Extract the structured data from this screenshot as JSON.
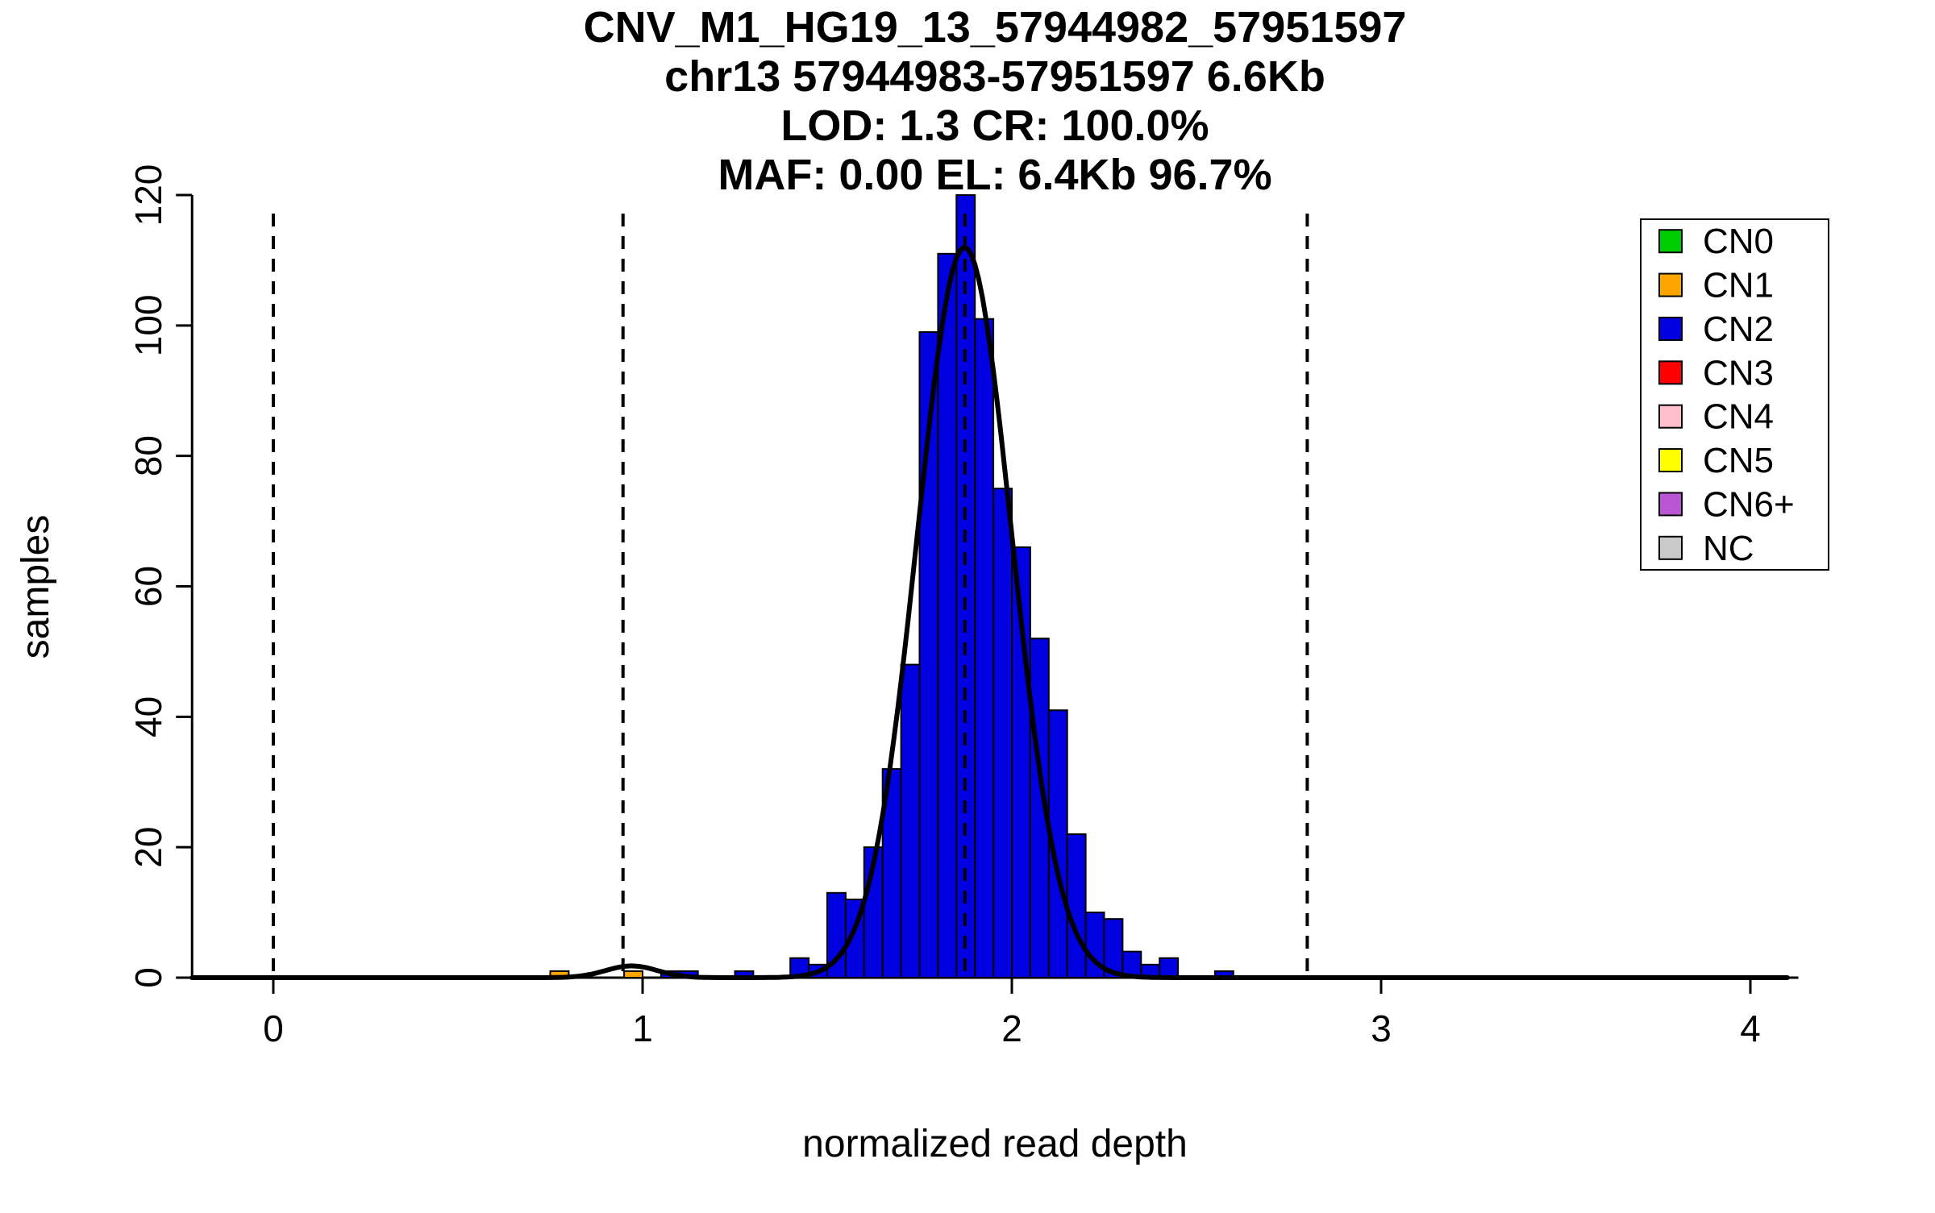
{
  "page": {
    "background": "#ffffff"
  },
  "chart_data": {
    "type": "bar",
    "subtype": "histogram",
    "title_lines": [
      "CNV_M1_HG19_13_57944982_57951597",
      "chr13 57944983-57951597 6.6Kb",
      "LOD: 1.3 CR: 100.0%",
      "MAF: 0.00 EL: 6.4Kb 96.7%"
    ],
    "xlabel": "normalized read depth",
    "ylabel": "samples",
    "x_ticks": [
      0,
      1,
      2,
      3,
      4
    ],
    "y_ticks": [
      0,
      20,
      40,
      60,
      80,
      100,
      120
    ],
    "xlim": [
      -0.22,
      4.13
    ],
    "ylim": [
      0,
      120
    ],
    "grid": false,
    "bin_width": 0.05,
    "bars": [
      {
        "x": 0.75,
        "count": 1,
        "cn": "CN1"
      },
      {
        "x": 0.95,
        "count": 1,
        "cn": "CN1"
      },
      {
        "x": 1.05,
        "count": 1,
        "cn": "CN2"
      },
      {
        "x": 1.1,
        "count": 1,
        "cn": "CN2"
      },
      {
        "x": 1.25,
        "count": 1,
        "cn": "CN2"
      },
      {
        "x": 1.4,
        "count": 3,
        "cn": "CN2"
      },
      {
        "x": 1.45,
        "count": 2,
        "cn": "CN2"
      },
      {
        "x": 1.5,
        "count": 13,
        "cn": "CN2"
      },
      {
        "x": 1.55,
        "count": 12,
        "cn": "CN2"
      },
      {
        "x": 1.6,
        "count": 20,
        "cn": "CN2"
      },
      {
        "x": 1.65,
        "count": 32,
        "cn": "CN2"
      },
      {
        "x": 1.7,
        "count": 48,
        "cn": "CN2"
      },
      {
        "x": 1.75,
        "count": 99,
        "cn": "CN2"
      },
      {
        "x": 1.8,
        "count": 111,
        "cn": "CN2"
      },
      {
        "x": 1.85,
        "count": 120,
        "cn": "CN2"
      },
      {
        "x": 1.9,
        "count": 101,
        "cn": "CN2"
      },
      {
        "x": 1.95,
        "count": 75,
        "cn": "CN2"
      },
      {
        "x": 2.0,
        "count": 66,
        "cn": "CN2"
      },
      {
        "x": 2.05,
        "count": 52,
        "cn": "CN2"
      },
      {
        "x": 2.1,
        "count": 41,
        "cn": "CN2"
      },
      {
        "x": 2.15,
        "count": 22,
        "cn": "CN2"
      },
      {
        "x": 2.2,
        "count": 10,
        "cn": "CN2"
      },
      {
        "x": 2.25,
        "count": 9,
        "cn": "CN2"
      },
      {
        "x": 2.3,
        "count": 4,
        "cn": "CN2"
      },
      {
        "x": 2.35,
        "count": 2,
        "cn": "CN2"
      },
      {
        "x": 2.4,
        "count": 3,
        "cn": "CN2"
      },
      {
        "x": 2.55,
        "count": 1,
        "cn": "CN2"
      }
    ],
    "curve": {
      "color": "#000000",
      "stroke_width": 6,
      "range": [
        -0.22,
        4.1
      ],
      "components": [
        {
          "mean": 1.872,
          "sd": 0.128,
          "amplitude": 112
        },
        {
          "mean": 0.97,
          "sd": 0.07,
          "amplitude": 1.8
        }
      ]
    },
    "dashed_lines": {
      "color": "#000000",
      "positions": [
        0.0,
        0.947,
        1.873,
        2.8
      ]
    },
    "legend": {
      "position": "top-right",
      "items": [
        {
          "label": "CN0",
          "color": "#00CD00"
        },
        {
          "label": "CN1",
          "color": "#FFA500"
        },
        {
          "label": "CN2",
          "color": "#0000E0"
        },
        {
          "label": "CN3",
          "color": "#FF0000"
        },
        {
          "label": "CN4",
          "color": "#FFC0CB"
        },
        {
          "label": "CN5",
          "color": "#FFFF00"
        },
        {
          "label": "CN6+",
          "color": "#BA55D3"
        },
        {
          "label": "NC",
          "color": "#C9C9C9"
        }
      ]
    }
  }
}
